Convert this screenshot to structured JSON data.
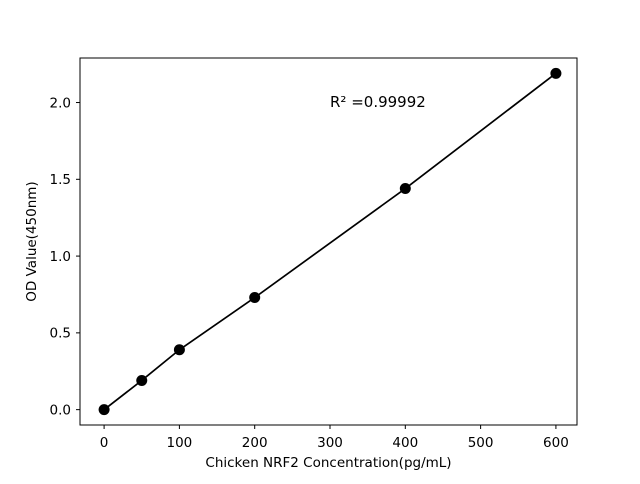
{
  "chart_data": {
    "type": "scatter",
    "title": "",
    "xlabel": "Chicken NRF2 Concentration(pg/mL)",
    "ylabel": "OD Value(450nm)",
    "x": [
      0,
      50,
      100,
      200,
      400,
      600
    ],
    "y": [
      0.0,
      0.19,
      0.39,
      0.73,
      1.44,
      2.19
    ],
    "line": "linear-fit-through-points",
    "annotation": {
      "text": "R² =0.99992",
      "x": 300,
      "y": 1.97
    },
    "xticks": [
      0,
      100,
      200,
      300,
      400,
      500,
      600
    ],
    "ytick_labels": [
      "0.0",
      "0.5",
      "1.0",
      "1.5",
      "2.0"
    ],
    "ytick_values": [
      0.0,
      0.5,
      1.0,
      1.5,
      2.0
    ],
    "xlim": [
      -32,
      628
    ],
    "ylim": [
      -0.1,
      2.29
    ],
    "grid": false,
    "legend": "none",
    "marker_color": "#000000",
    "line_color": "#000000",
    "axis_color": "#000000",
    "background_color": "#ffffff"
  }
}
